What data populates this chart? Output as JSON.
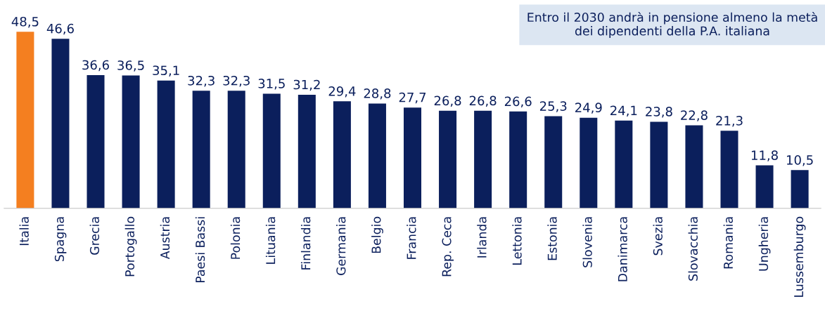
{
  "chart_data": {
    "type": "bar",
    "categories": [
      "Italia",
      "Spagna",
      "Grecia",
      "Portogallo",
      "Austria",
      "Paesi Bassi",
      "Polonia",
      "Lituania",
      "Finlandia",
      "Germania",
      "Belgio",
      "Francia",
      "Rep. Ceca",
      "Irlanda",
      "Lettonia",
      "Estonia",
      "Slovenia",
      "Danimarca",
      "Svezia",
      "Slovacchia",
      "Romania",
      "Ungheria",
      "Lussemburgo"
    ],
    "values": [
      48.5,
      46.6,
      36.6,
      36.5,
      35.1,
      32.3,
      32.3,
      31.5,
      31.2,
      29.4,
      28.8,
      27.7,
      26.8,
      26.8,
      26.6,
      25.3,
      24.9,
      24.1,
      23.8,
      22.8,
      21.3,
      11.8,
      10.5
    ],
    "colors": [
      "#f47f20",
      "#0b1f5c",
      "#0b1f5c",
      "#0b1f5c",
      "#0b1f5c",
      "#0b1f5c",
      "#0b1f5c",
      "#0b1f5c",
      "#0b1f5c",
      "#0b1f5c",
      "#0b1f5c",
      "#0b1f5c",
      "#0b1f5c",
      "#0b1f5c",
      "#0b1f5c",
      "#0b1f5c",
      "#0b1f5c",
      "#0b1f5c",
      "#0b1f5c",
      "#0b1f5c",
      "#0b1f5c",
      "#0b1f5c",
      "#0b1f5c"
    ],
    "value_labels": [
      "48,5",
      "46,6",
      "36,6",
      "36,5",
      "35,1",
      "32,3",
      "32,3",
      "31,5",
      "31,2",
      "29,4",
      "28,8",
      "27,7",
      "26,8",
      "26,8",
      "26,6",
      "25,3",
      "24,9",
      "24,1",
      "23,8",
      "22,8",
      "21,3",
      "11,8",
      "10,5"
    ],
    "annotations": [
      "Entro il 2030 andrà in pensione almeno la metà dei dipendenti della P.A. italiana"
    ],
    "grid": false,
    "legend": false
  }
}
